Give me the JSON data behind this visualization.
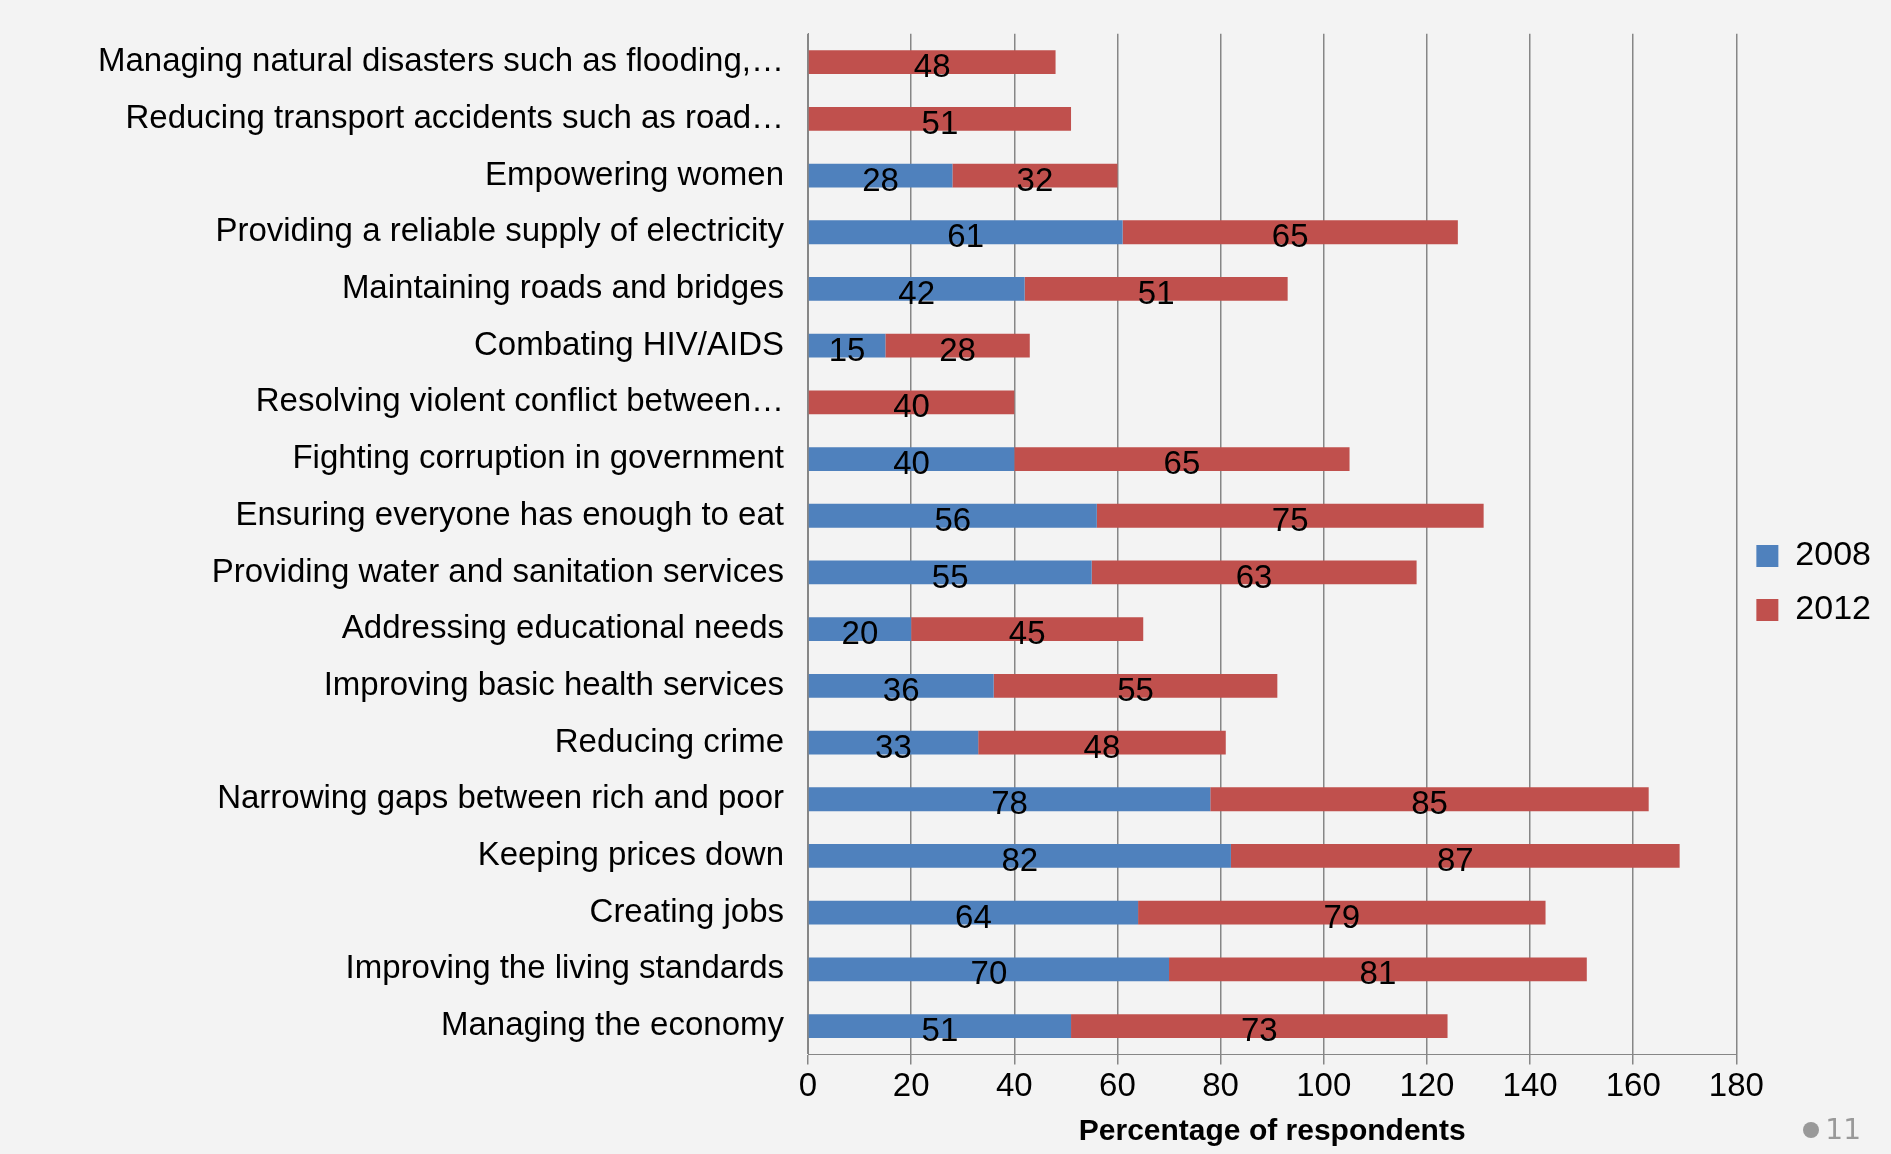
{
  "chart_data": {
    "type": "bar",
    "orientation": "horizontal",
    "stacked": true,
    "xlabel": "Percentage of respondents",
    "categories": [
      "Managing natural disasters such as flooding,…",
      "Reducing transport accidents such as road…",
      "Empowering women",
      "Providing a reliable supply of electricity",
      "Maintaining roads and bridges",
      "Combating HIV/AIDS",
      "Resolving violent conflict between…",
      "Fighting corruption in government",
      "Ensuring everyone has enough to eat",
      "Providing water and sanitation services",
      "Addressing educational needs",
      "Improving basic health services",
      "Reducing crime",
      "Narrowing gaps between rich and poor",
      "Keeping prices down",
      "Creating jobs",
      "Improving the living standards",
      "Managing the economy"
    ],
    "series": [
      {
        "name": "2008",
        "color": "#4f81bd",
        "values": [
          null,
          null,
          28,
          61,
          42,
          15,
          null,
          40,
          56,
          55,
          20,
          36,
          33,
          78,
          82,
          64,
          70,
          51
        ]
      },
      {
        "name": "2012",
        "color": "#c0504d",
        "values": [
          48,
          51,
          32,
          65,
          51,
          28,
          40,
          65,
          75,
          63,
          45,
          55,
          48,
          85,
          87,
          79,
          81,
          73
        ]
      }
    ],
    "xlim": [
      0,
      180
    ],
    "xticks": [
      0,
      20,
      40,
      60,
      80,
      100,
      120,
      140,
      160,
      180
    ],
    "grid": "x",
    "legend": "right",
    "data_labels": true,
    "annotations": [
      "11"
    ]
  }
}
